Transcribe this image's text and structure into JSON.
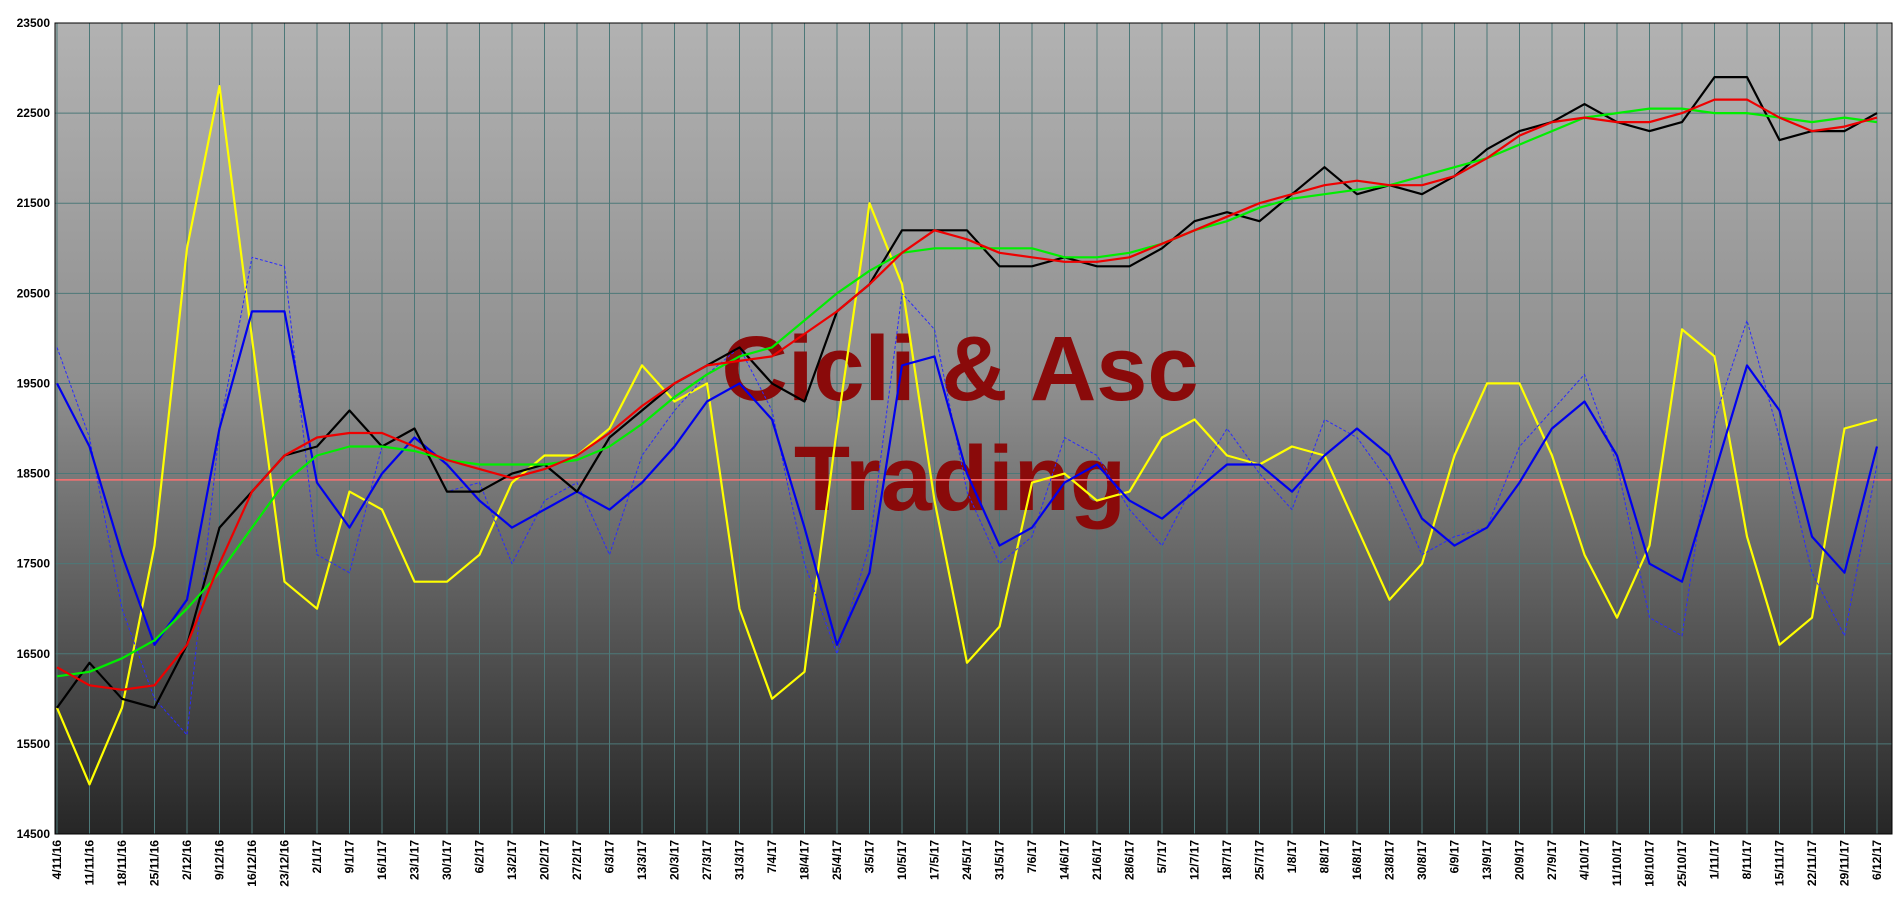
{
  "chart_data": {
    "type": "line",
    "watermark_lines": [
      "Cicli & Asc",
      "Trading"
    ],
    "categories": [
      "4/11/16",
      "11/11/16",
      "18/11/16",
      "25/11/16",
      "2/12/16",
      "9/12/16",
      "16/12/16",
      "23/12/16",
      "2/1/17",
      "9/1/17",
      "16/1/17",
      "23/1/17",
      "30/1/17",
      "6/2/17",
      "13/2/17",
      "20/2/17",
      "27/2/17",
      "6/3/17",
      "13/3/17",
      "20/3/17",
      "27/3/17",
      "31/3/17",
      "7/4/17",
      "18/4/17",
      "25/4/17",
      "3/5/17",
      "10/5/17",
      "17/5/17",
      "24/5/17",
      "31/5/17",
      "7/6/17",
      "14/6/17",
      "21/6/17",
      "28/6/17",
      "5/7/17",
      "12/7/17",
      "18/7/17",
      "25/7/17",
      "1/8/17",
      "8/8/17",
      "16/8/17",
      "23/8/17",
      "30/8/17",
      "6/9/17",
      "13/9/17",
      "20/9/17",
      "27/9/17",
      "4/10/17",
      "11/10/17",
      "18/10/17",
      "25/10/17",
      "1/11/17",
      "8/11/17",
      "15/11/17",
      "22/11/17",
      "29/11/17",
      "6/12/17"
    ],
    "series": [
      {
        "color": "#ffff00",
        "style": "solid",
        "values": [
          15900,
          15050,
          15900,
          17700,
          21000,
          22800,
          20000,
          17300,
          17000,
          18300,
          18100,
          17300,
          17300,
          17600,
          18400,
          18700,
          18700,
          19000,
          19700,
          19300,
          19500,
          17000,
          16000,
          16300,
          19000,
          21500,
          20600,
          18200,
          16400,
          16800,
          18400,
          18500,
          18200,
          18300,
          18900,
          19100,
          18700,
          18600,
          18800,
          18700,
          17900,
          17100,
          17500,
          18700,
          19500,
          19500,
          18700,
          17600,
          16900,
          17700,
          20100,
          19800,
          17800,
          16600,
          16900,
          19000,
          19100
        ]
      },
      {
        "color": "#2a2aff",
        "style": "dashed",
        "values": [
          19900,
          18900,
          17000,
          16000,
          15600,
          19000,
          20900,
          20800,
          17600,
          17400,
          18800,
          19000,
          18300,
          18400,
          17500,
          18200,
          18400,
          17600,
          18700,
          19200,
          19600,
          19900,
          19200,
          17500,
          16500,
          17700,
          20500,
          20100,
          18300,
          17500,
          17800,
          18900,
          18700,
          18100,
          17700,
          18400,
          19000,
          18500,
          18100,
          19100,
          18900,
          18400,
          17600,
          17800,
          17900,
          18800,
          19200,
          19600,
          18600,
          16900,
          16700,
          19100,
          20200,
          18900,
          17400,
          16700,
          18600
        ]
      },
      {
        "color": "#0000ee",
        "style": "solid",
        "values": [
          19500,
          18800,
          17600,
          16600,
          17100,
          19000,
          20300,
          20300,
          18400,
          17900,
          18500,
          18900,
          18600,
          18200,
          17900,
          18100,
          18300,
          18100,
          18400,
          18800,
          19300,
          19500,
          19100,
          17900,
          16600,
          17400,
          19700,
          19800,
          18500,
          17700,
          17900,
          18400,
          18600,
          18200,
          18000,
          18300,
          18600,
          18600,
          18300,
          18700,
          19000,
          18700,
          18000,
          17700,
          17900,
          18400,
          19000,
          19300,
          18700,
          17500,
          17300,
          18500,
          19700,
          19200,
          17800,
          17400,
          18800
        ]
      },
      {
        "color": "#000000",
        "style": "solid",
        "values": [
          15900,
          16400,
          16000,
          15900,
          16600,
          17900,
          18300,
          18700,
          18800,
          19200,
          18800,
          19000,
          18300,
          18300,
          18500,
          18600,
          18300,
          18900,
          19200,
          19500,
          19700,
          19900,
          19500,
          19300,
          20300,
          20600,
          21200,
          21200,
          21200,
          20800,
          20800,
          20900,
          20800,
          20800,
          21000,
          21300,
          21400,
          21300,
          21600,
          21900,
          21600,
          21700,
          21600,
          21800,
          22100,
          22300,
          22400,
          22600,
          22400,
          22300,
          22400,
          22900,
          22900,
          22200,
          22300,
          22300,
          22500
        ]
      },
      {
        "color": "#00ee00",
        "style": "solid",
        "values": [
          16250,
          16300,
          16450,
          16650,
          17000,
          17400,
          17900,
          18400,
          18700,
          18800,
          18800,
          18750,
          18650,
          18600,
          18600,
          18600,
          18650,
          18800,
          19050,
          19350,
          19600,
          19800,
          19900,
          20200,
          20500,
          20750,
          20950,
          21000,
          21000,
          21000,
          21000,
          20900,
          20900,
          20950,
          21050,
          21200,
          21300,
          21450,
          21550,
          21600,
          21650,
          21700,
          21800,
          21900,
          22000,
          22150,
          22300,
          22450,
          22500,
          22550,
          22550,
          22500,
          22500,
          22450,
          22400,
          22450,
          22400
        ]
      },
      {
        "color": "#ee0000",
        "style": "solid",
        "values": [
          16350,
          16150,
          16100,
          16150,
          16600,
          17500,
          18300,
          18700,
          18900,
          18950,
          18950,
          18800,
          18650,
          18550,
          18450,
          18550,
          18700,
          18950,
          19250,
          19500,
          19700,
          19750,
          19800,
          20050,
          20300,
          20600,
          20950,
          21200,
          21100,
          20950,
          20900,
          20850,
          20850,
          20900,
          21050,
          21200,
          21350,
          21500,
          21600,
          21700,
          21750,
          21700,
          21700,
          21800,
          22000,
          22250,
          22400,
          22450,
          22400,
          22400,
          22500,
          22650,
          22650,
          22450,
          22300,
          22350,
          22450
        ]
      }
    ],
    "reference_line": {
      "value": 18430,
      "color": "#ff7070"
    },
    "ylim": [
      14500,
      23500
    ],
    "yticks": [
      14500,
      15500,
      16500,
      17500,
      18500,
      19500,
      20500,
      21500,
      22500,
      23500
    ],
    "grid": true,
    "grid_color": "#4c7878"
  }
}
